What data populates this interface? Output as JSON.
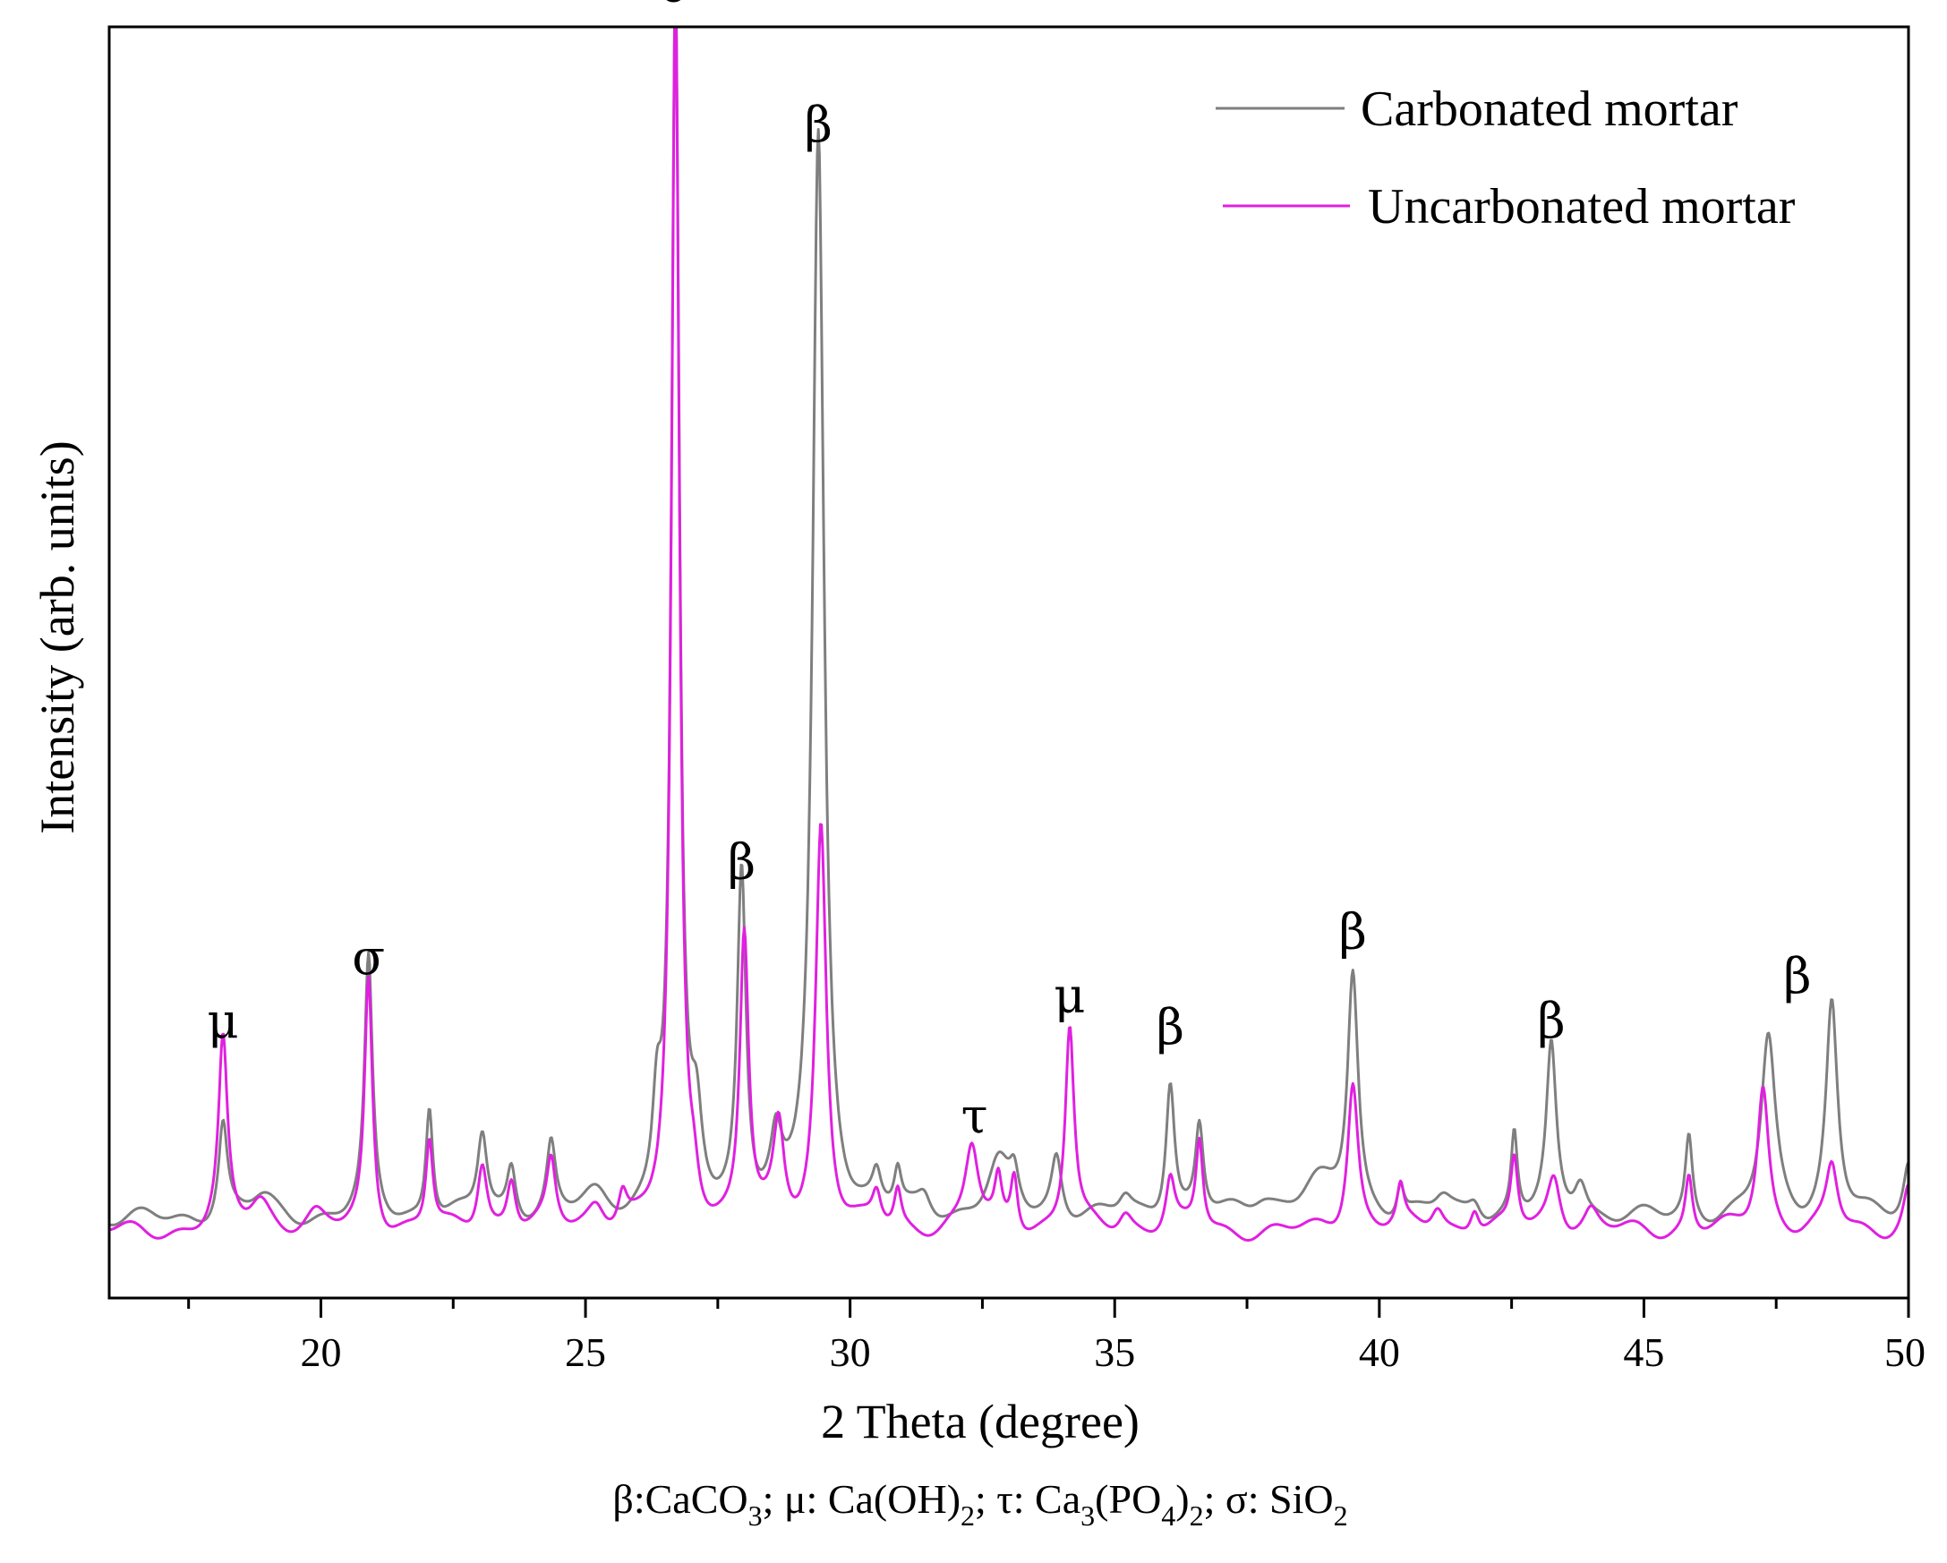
{
  "chart_data": {
    "type": "line",
    "xlabel": "2 Theta (degree)",
    "ylabel": "Intensity (arb. units)",
    "xlim": [
      16,
      50
    ],
    "ylim": [
      0,
      100
    ],
    "x_ticks": [
      "20",
      "25",
      "30",
      "35",
      "40",
      "45",
      "50"
    ],
    "x_tick_values": [
      20,
      25,
      30,
      35,
      40,
      45,
      50
    ],
    "minor_tick_step": 2.5,
    "grid": false,
    "legend_position": "top-right",
    "series": [
      {
        "name": "Carbonated mortar",
        "color": "#7f7f7f",
        "baseline": 6.2,
        "peaks": [
          [
            18.15,
            7.5,
            0.1
          ],
          [
            18.9,
            1.5,
            0.3
          ],
          [
            20.9,
            20,
            0.09
          ],
          [
            22.05,
            9,
            0.08
          ],
          [
            23.05,
            6.5,
            0.11
          ],
          [
            23.6,
            4,
            0.1
          ],
          [
            24.35,
            5.5,
            0.1
          ],
          [
            25.2,
            1.5,
            0.3
          ],
          [
            26.35,
            7,
            0.1
          ],
          [
            26.7,
            96,
            0.09
          ],
          [
            27.1,
            6,
            0.12
          ],
          [
            27.95,
            27,
            0.1
          ],
          [
            28.6,
            4.5,
            0.12
          ],
          [
            29.4,
            85,
            0.13
          ],
          [
            30.5,
            2.5,
            0.1
          ],
          [
            30.9,
            3,
            0.08
          ],
          [
            31.4,
            1.5,
            0.15
          ],
          [
            32.8,
            4,
            0.25
          ],
          [
            33.1,
            2.5,
            0.1
          ],
          [
            33.9,
            5,
            0.12
          ],
          [
            35.2,
            1.5,
            0.15
          ],
          [
            36.05,
            11,
            0.1
          ],
          [
            36.6,
            7,
            0.09
          ],
          [
            37.8,
            1.5,
            0.3
          ],
          [
            38.8,
            2.5,
            0.4
          ],
          [
            39.5,
            19,
            0.12
          ],
          [
            40.4,
            2.5,
            0.08
          ],
          [
            41.2,
            1.5,
            0.2
          ],
          [
            41.8,
            1.5,
            0.15
          ],
          [
            42.55,
            6.5,
            0.07
          ],
          [
            43.25,
            13,
            0.11
          ],
          [
            43.8,
            3,
            0.15
          ],
          [
            45.85,
            6.5,
            0.08
          ],
          [
            47.35,
            14,
            0.16
          ],
          [
            48.55,
            17,
            0.13
          ],
          [
            50.0,
            4.5,
            0.12
          ]
        ]
      },
      {
        "name": "Uncarbonated mortar",
        "color": "#e020e0",
        "baseline": 5.2,
        "peaks": [
          [
            18.15,
            14.5,
            0.1
          ],
          [
            18.85,
            2.5,
            0.25
          ],
          [
            19.9,
            1,
            0.2
          ],
          [
            20.9,
            20,
            0.09
          ],
          [
            22.05,
            7,
            0.08
          ],
          [
            23.05,
            5.5,
            0.11
          ],
          [
            23.6,
            4,
            0.1
          ],
          [
            24.35,
            5,
            0.1
          ],
          [
            25.2,
            2,
            0.2
          ],
          [
            25.7,
            2.5,
            0.1
          ],
          [
            26.7,
            97,
            0.09
          ],
          [
            27.05,
            2.5,
            0.1
          ],
          [
            28.0,
            23,
            0.1
          ],
          [
            28.65,
            7.5,
            0.12
          ],
          [
            29.45,
            32,
            0.12
          ],
          [
            30.5,
            2.5,
            0.1
          ],
          [
            30.9,
            3,
            0.08
          ],
          [
            32.3,
            6.5,
            0.15
          ],
          [
            32.8,
            3.5,
            0.08
          ],
          [
            33.1,
            4.5,
            0.08
          ],
          [
            34.15,
            16,
            0.1
          ],
          [
            35.2,
            1.5,
            0.15
          ],
          [
            36.05,
            4,
            0.1
          ],
          [
            36.6,
            7,
            0.08
          ],
          [
            39.5,
            12,
            0.12
          ],
          [
            40.4,
            3,
            0.08
          ],
          [
            41.1,
            2,
            0.15
          ],
          [
            41.8,
            2,
            0.1
          ],
          [
            42.55,
            5.5,
            0.08
          ],
          [
            43.3,
            4.5,
            0.15
          ],
          [
            44.0,
            1.5,
            0.15
          ],
          [
            45.85,
            4.5,
            0.08
          ],
          [
            47.25,
            11.5,
            0.13
          ],
          [
            48.55,
            5,
            0.13
          ],
          [
            50.0,
            3.5,
            0.12
          ]
        ]
      }
    ],
    "annotations": [
      {
        "text": "μ",
        "x": 18.15,
        "y": 20.5
      },
      {
        "text": "σ",
        "x": 20.9,
        "y": 25.5
      },
      {
        "text": "σ",
        "x": 26.7,
        "y": 102
      },
      {
        "text": "β",
        "x": 27.95,
        "y": 33
      },
      {
        "text": "β",
        "x": 29.4,
        "y": 91
      },
      {
        "text": "τ",
        "x": 32.35,
        "y": 13
      },
      {
        "text": "μ",
        "x": 34.15,
        "y": 22.5
      },
      {
        "text": "β",
        "x": 36.05,
        "y": 20
      },
      {
        "text": "β",
        "x": 39.5,
        "y": 27.5
      },
      {
        "text": "β",
        "x": 43.25,
        "y": 20.5
      },
      {
        "text": "β",
        "x": 47.9,
        "y": 24
      }
    ]
  },
  "legend": {
    "carbonated_label": "Carbonated mortar",
    "uncarbonated_label": "Uncarbonated mortar"
  },
  "caption": {
    "beta": "β:CaCO",
    "beta_sub": "3",
    "sep1": "; μ: Ca(OH)",
    "mu_sub": "2",
    "sep2": "; τ: Ca",
    "tau_sub1": "3",
    "tau_mid": "(PO",
    "tau_sub2": "4",
    "tau_close": ")",
    "tau_sub3": "2",
    "sep3": "; σ: SiO",
    "sigma_sub": "2"
  }
}
